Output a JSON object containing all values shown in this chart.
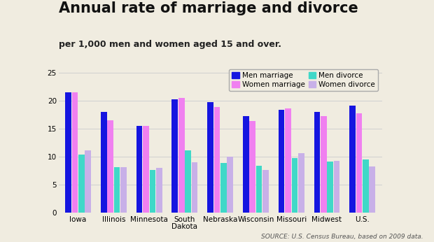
{
  "title": "Annual rate of marriage and divorce",
  "subtitle": "per 1,000 men and women aged 15 and over.",
  "source": "SOURCE: U.S. Census Bureau, based on 2009 data.",
  "categories": [
    "Iowa",
    "Illinois",
    "Minnesota",
    "South\nDakota",
    "Nebraska",
    "Wisconsin",
    "Missouri",
    "Midwest",
    "U.S."
  ],
  "men_marriage": [
    21.5,
    18.0,
    15.5,
    20.3,
    19.8,
    17.3,
    18.4,
    18.0,
    19.1
  ],
  "women_marriage": [
    21.5,
    16.5,
    15.5,
    20.5,
    18.9,
    16.4,
    18.6,
    17.2,
    17.7
  ],
  "men_divorce": [
    10.4,
    8.1,
    7.6,
    11.2,
    8.9,
    8.4,
    9.8,
    9.2,
    9.5
  ],
  "women_divorce": [
    11.1,
    8.1,
    8.0,
    9.0,
    10.0,
    7.7,
    10.7,
    9.3,
    8.3
  ],
  "bar_colors": {
    "men_marriage": "#1515e0",
    "women_marriage": "#f080f0",
    "men_divorce": "#40d8c8",
    "women_divorce": "#c8b0e8"
  },
  "ylim": [
    0,
    25
  ],
  "yticks": [
    0,
    5,
    10,
    15,
    20,
    25
  ],
  "background_color": "#f0ece0",
  "grid_color": "#d0d0d0",
  "title_fontsize": 15,
  "subtitle_fontsize": 9,
  "axis_fontsize": 7.5,
  "legend_fontsize": 7.5,
  "source_fontsize": 6.5
}
